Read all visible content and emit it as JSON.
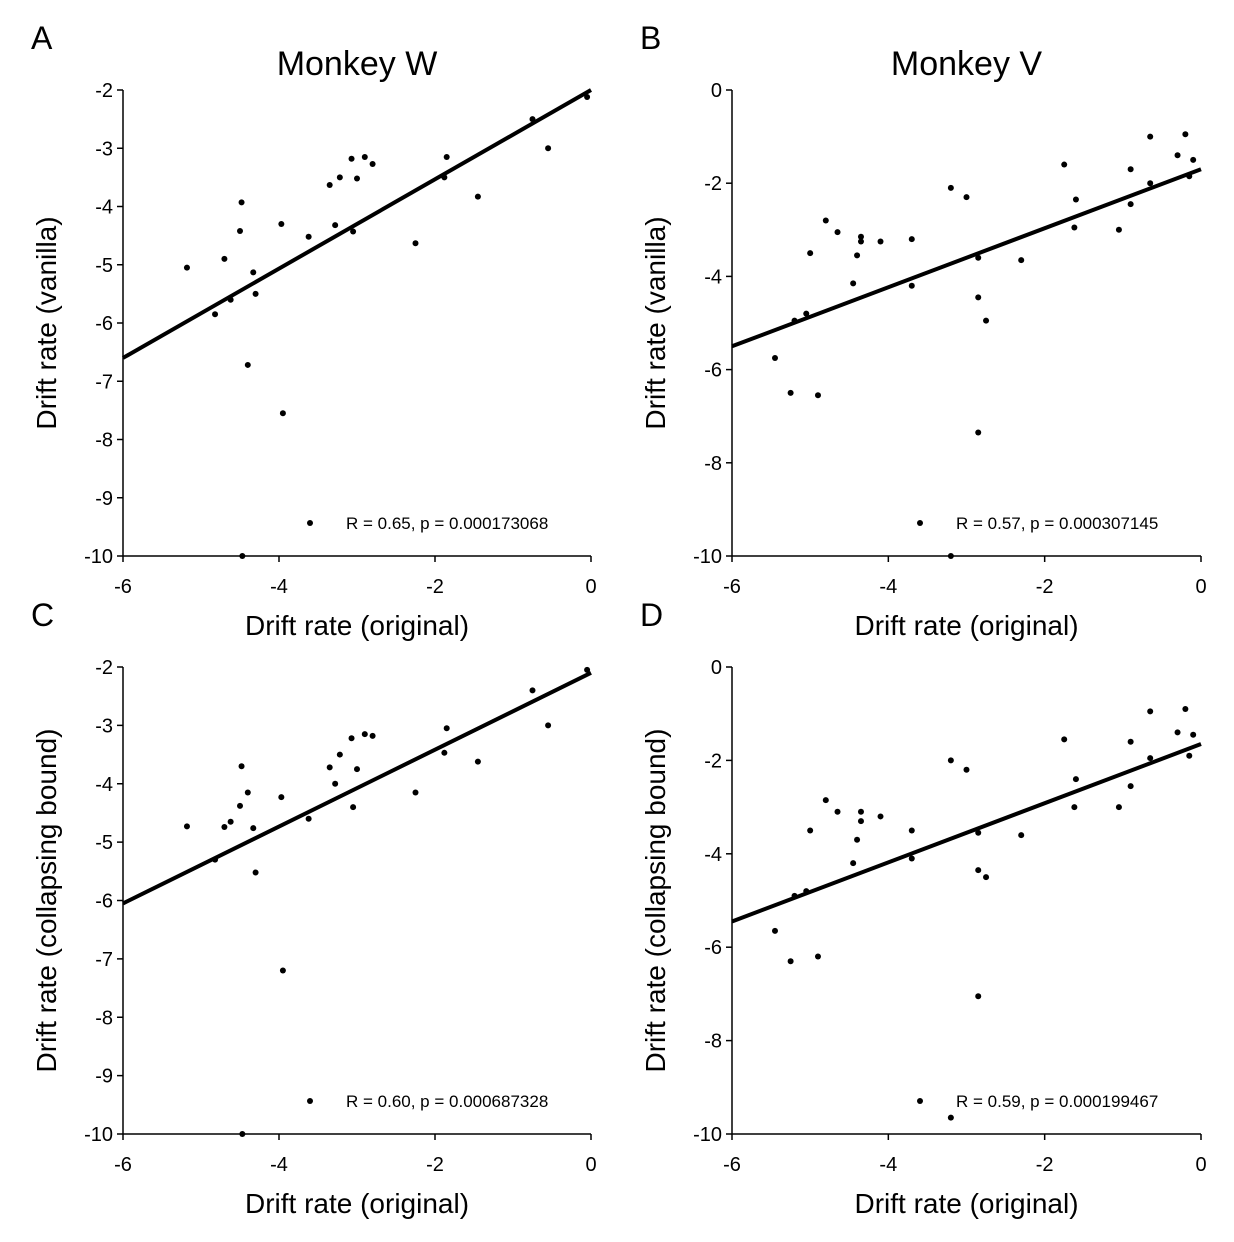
{
  "chart_data": [
    {
      "panel": "A",
      "type": "scatter",
      "title": "Monkey W",
      "xlabel": "Drift rate (original)",
      "ylabel": "Drift rate (vanilla)",
      "xlim": [
        -6,
        0
      ],
      "ylim": [
        -10,
        -2
      ],
      "xticks": [
        -6,
        -4,
        -2,
        0
      ],
      "yticks": [
        -2,
        -3,
        -4,
        -5,
        -6,
        -7,
        -8,
        -9,
        -10
      ],
      "legend": "R = 0.65, p = 0.000173068",
      "legend_position": "bottom-right",
      "fit_line": {
        "x": [
          -6,
          0
        ],
        "y": [
          -6.6,
          -2.0
        ]
      },
      "points": [
        [
          -0.05,
          -2.12
        ],
        [
          -0.75,
          -2.5
        ],
        [
          -0.55,
          -3.0
        ],
        [
          -1.45,
          -3.83
        ],
        [
          -1.85,
          -3.15
        ],
        [
          -1.88,
          -3.5
        ],
        [
          -2.25,
          -4.63
        ],
        [
          -2.8,
          -3.27
        ],
        [
          -2.9,
          -3.15
        ],
        [
          -3.0,
          -3.52
        ],
        [
          -3.05,
          -4.43
        ],
        [
          -3.07,
          -3.18
        ],
        [
          -3.22,
          -3.5
        ],
        [
          -3.28,
          -4.32
        ],
        [
          -3.35,
          -3.63
        ],
        [
          -3.62,
          -4.52
        ],
        [
          -3.97,
          -4.3
        ],
        [
          -3.95,
          -7.55
        ],
        [
          -4.3,
          -5.5
        ],
        [
          -4.33,
          -5.13
        ],
        [
          -4.48,
          -3.93
        ],
        [
          -4.5,
          -4.42
        ],
        [
          -4.4,
          -6.72
        ],
        [
          -4.62,
          -5.6
        ],
        [
          -4.7,
          -4.9
        ],
        [
          -4.82,
          -5.85
        ],
        [
          -5.18,
          -5.05
        ],
        [
          -4.47,
          -10.0
        ]
      ]
    },
    {
      "panel": "B",
      "type": "scatter",
      "title": "Monkey V",
      "xlabel": "Drift rate (original)",
      "ylabel": "Drift rate (vanilla)",
      "xlim": [
        -6,
        0
      ],
      "ylim": [
        -10,
        0
      ],
      "xticks": [
        -6,
        -4,
        -2,
        0
      ],
      "yticks": [
        0,
        -2,
        -4,
        -6,
        -8,
        -10
      ],
      "legend": "R = 0.57, p = 0.000307145",
      "legend_position": "bottom-right",
      "fit_line": {
        "x": [
          -6,
          0
        ],
        "y": [
          -5.5,
          -1.7
        ]
      },
      "points": [
        [
          -0.2,
          -0.95
        ],
        [
          -0.1,
          -1.5
        ],
        [
          -0.3,
          -1.4
        ],
        [
          -0.15,
          -1.85
        ],
        [
          -0.65,
          -1.0
        ],
        [
          -0.65,
          -2.0
        ],
        [
          -0.9,
          -1.7
        ],
        [
          -0.9,
          -2.45
        ],
        [
          -1.05,
          -3.0
        ],
        [
          -1.6,
          -2.35
        ],
        [
          -1.62,
          -2.95
        ],
        [
          -1.75,
          -1.6
        ],
        [
          -2.3,
          -3.65
        ],
        [
          -2.75,
          -4.95
        ],
        [
          -2.85,
          -3.6
        ],
        [
          -2.85,
          -4.45
        ],
        [
          -2.85,
          -7.35
        ],
        [
          -3.0,
          -2.3
        ],
        [
          -3.2,
          -2.1
        ],
        [
          -3.2,
          -10.0
        ],
        [
          -3.7,
          -3.2
        ],
        [
          -3.7,
          -4.2
        ],
        [
          -4.1,
          -3.25
        ],
        [
          -4.35,
          -3.15
        ],
        [
          -4.35,
          -3.25
        ],
        [
          -4.4,
          -3.55
        ],
        [
          -4.45,
          -4.15
        ],
        [
          -4.65,
          -3.05
        ],
        [
          -4.8,
          -2.8
        ],
        [
          -5.0,
          -3.5
        ],
        [
          -5.05,
          -4.8
        ],
        [
          -5.2,
          -4.95
        ],
        [
          -5.25,
          -6.5
        ],
        [
          -4.9,
          -6.55
        ],
        [
          -5.45,
          -5.75
        ]
      ]
    },
    {
      "panel": "C",
      "type": "scatter",
      "title": "",
      "xlabel": "Drift rate (original)",
      "ylabel": "Drift rate (collapsing bound)",
      "xlim": [
        -6,
        0
      ],
      "ylim": [
        -10,
        -2
      ],
      "xticks": [
        -6,
        -4,
        -2,
        0
      ],
      "yticks": [
        -2,
        -3,
        -4,
        -5,
        -6,
        -7,
        -8,
        -9,
        -10
      ],
      "legend": "R = 0.60, p = 0.000687328",
      "legend_position": "bottom-right",
      "fit_line": {
        "x": [
          -6,
          0
        ],
        "y": [
          -6.05,
          -2.1
        ]
      },
      "points": [
        [
          -0.05,
          -2.05
        ],
        [
          -0.75,
          -2.4
        ],
        [
          -0.55,
          -3.0
        ],
        [
          -1.45,
          -3.62
        ],
        [
          -1.85,
          -3.05
        ],
        [
          -1.88,
          -3.47
        ],
        [
          -2.25,
          -4.15
        ],
        [
          -2.8,
          -3.18
        ],
        [
          -2.9,
          -3.15
        ],
        [
          -3.0,
          -3.75
        ],
        [
          -3.05,
          -4.4
        ],
        [
          -3.07,
          -3.22
        ],
        [
          -3.22,
          -3.5
        ],
        [
          -3.28,
          -4.0
        ],
        [
          -3.35,
          -3.72
        ],
        [
          -3.62,
          -4.6
        ],
        [
          -3.97,
          -4.23
        ],
        [
          -3.95,
          -7.2
        ],
        [
          -4.3,
          -5.52
        ],
        [
          -4.33,
          -4.76
        ],
        [
          -4.48,
          -3.7
        ],
        [
          -4.5,
          -4.38
        ],
        [
          -4.4,
          -4.15
        ],
        [
          -4.62,
          -4.65
        ],
        [
          -4.7,
          -4.74
        ],
        [
          -4.82,
          -5.3
        ],
        [
          -5.18,
          -4.73
        ],
        [
          -4.47,
          -10.0
        ]
      ]
    },
    {
      "panel": "D",
      "type": "scatter",
      "title": "",
      "xlabel": "Drift rate (original)",
      "ylabel": "Drift rate (collapsing bound)",
      "xlim": [
        -6,
        0
      ],
      "ylim": [
        -10,
        0
      ],
      "xticks": [
        -6,
        -4,
        -2,
        0
      ],
      "yticks": [
        0,
        -2,
        -4,
        -6,
        -8,
        -10
      ],
      "legend": "R = 0.59, p = 0.000199467",
      "legend_position": "bottom-right",
      "fit_line": {
        "x": [
          -6,
          0
        ],
        "y": [
          -5.45,
          -1.65
        ]
      },
      "points": [
        [
          -0.2,
          -0.9
        ],
        [
          -0.1,
          -1.45
        ],
        [
          -0.3,
          -1.4
        ],
        [
          -0.15,
          -1.9
        ],
        [
          -0.65,
          -0.95
        ],
        [
          -0.65,
          -1.95
        ],
        [
          -0.9,
          -1.6
        ],
        [
          -0.9,
          -2.55
        ],
        [
          -1.05,
          -3.0
        ],
        [
          -1.6,
          -2.4
        ],
        [
          -1.62,
          -3.0
        ],
        [
          -1.75,
          -1.55
        ],
        [
          -2.3,
          -3.6
        ],
        [
          -2.75,
          -4.5
        ],
        [
          -2.85,
          -3.55
        ],
        [
          -2.85,
          -4.35
        ],
        [
          -2.85,
          -7.05
        ],
        [
          -3.0,
          -2.2
        ],
        [
          -3.2,
          -2.0
        ],
        [
          -3.2,
          -9.65
        ],
        [
          -3.7,
          -3.5
        ],
        [
          -3.7,
          -4.1
        ],
        [
          -4.1,
          -3.2
        ],
        [
          -4.35,
          -3.1
        ],
        [
          -4.35,
          -3.3
        ],
        [
          -4.4,
          -3.7
        ],
        [
          -4.45,
          -4.2
        ],
        [
          -4.65,
          -3.1
        ],
        [
          -4.8,
          -2.85
        ],
        [
          -5.0,
          -3.5
        ],
        [
          -5.05,
          -4.8
        ],
        [
          -5.2,
          -4.9
        ],
        [
          -5.25,
          -6.3
        ],
        [
          -4.9,
          -6.2
        ],
        [
          -5.45,
          -5.65
        ]
      ]
    }
  ]
}
